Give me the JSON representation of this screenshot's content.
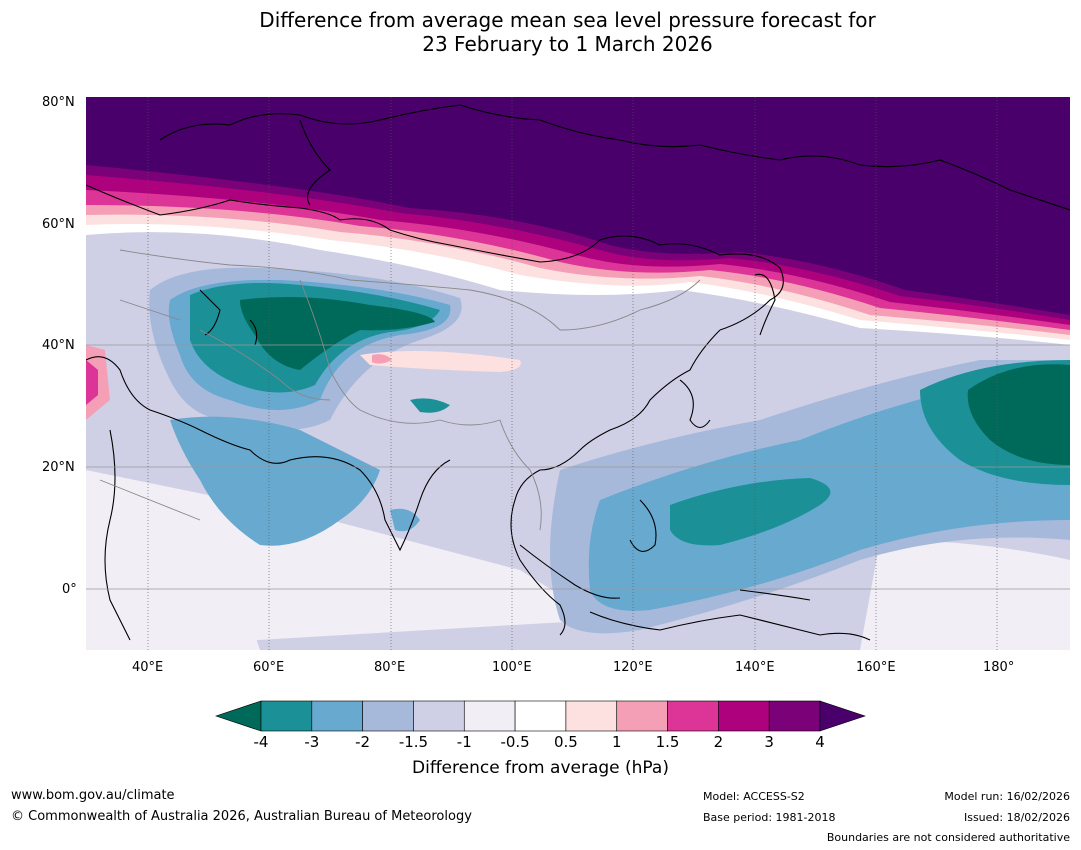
{
  "title": {
    "line1": "Difference from average mean sea level pressure forecast for",
    "line2": "23 February to 1 March 2026"
  },
  "map": {
    "region": "Asia and Western Pacific",
    "lat_labels": [
      "80°N",
      "60°N",
      "40°N",
      "20°N",
      "0°"
    ],
    "lon_labels": [
      "40°E",
      "60°E",
      "80°E",
      "100°E",
      "120°E",
      "140°E",
      "160°E",
      "180°"
    ]
  },
  "colorbar": {
    "label": "Difference from average (hPa)",
    "ticks": [
      "-4",
      "-3",
      "-2",
      "-1.5",
      "-1",
      "-0.5",
      "0.5",
      "1",
      "1.5",
      "2",
      "3",
      "4"
    ],
    "colors": [
      "#006a5a",
      "#1b9096",
      "#67a9cf",
      "#a7b9da",
      "#cfd0e6",
      "#f1eef5",
      "#ffffff",
      "#fde0e0",
      "#f59fb7",
      "#dd3497",
      "#ae017e",
      "#7a0177",
      "#49006a"
    ]
  },
  "footer": {
    "website": "www.bom.gov.au/climate",
    "copyright": "© Commonwealth of Australia 2026, Australian Bureau of Meteorology",
    "model": "Model: ACCESS-S2",
    "base_period": "Base period: 1981-2018",
    "model_run": "Model run: 16/02/2026",
    "issued": "Issued: 18/02/2026",
    "disclaimer": "Boundaries are not considered authoritative"
  }
}
